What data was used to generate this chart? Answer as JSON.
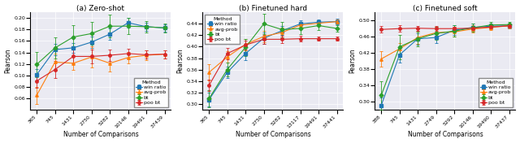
{
  "x_labels_a": [
    365,
    745,
    1431,
    2750,
    5282,
    10146,
    19491,
    37439
  ],
  "x_labels_b": [
    365,
    745,
    1431,
    2750,
    5282,
    13117,
    19491,
    37441
  ],
  "x_labels_c": [
    388,
    745,
    1431,
    2749,
    5292,
    10146,
    19490,
    37437
  ],
  "subplot_titles": [
    "(a) Zero-shot",
    "(b) Finetuned hard",
    "(c) Finetuned soft"
  ],
  "ylabel": "Pearson",
  "xlabel": "Number of Comparisons",
  "methods": [
    "win ratio",
    "avg-prob",
    "bt",
    "poo bt"
  ],
  "colors": [
    "#1f77b4",
    "#ff7f0e",
    "#2ca02c",
    "#d62728"
  ],
  "markers": [
    "s",
    "^",
    "D",
    "o"
  ],
  "a_win_ratio": [
    0.101,
    0.145,
    0.148,
    0.158,
    0.172,
    0.192,
    0.185,
    0.183
  ],
  "a_win_ratio_e": [
    0.01,
    0.01,
    0.008,
    0.01,
    0.01,
    0.008,
    0.007,
    0.006
  ],
  "a_avg_prob": [
    0.065,
    0.123,
    0.121,
    0.132,
    0.121,
    0.131,
    0.135,
    0.137
  ],
  "a_avg_prob_e": [
    0.015,
    0.015,
    0.012,
    0.018,
    0.015,
    0.01,
    0.008,
    0.007
  ],
  "a_bt": [
    0.119,
    0.148,
    0.167,
    0.173,
    0.186,
    0.186,
    0.185,
    0.183
  ],
  "a_bt_e": [
    0.022,
    0.018,
    0.02,
    0.02,
    0.02,
    0.014,
    0.01,
    0.008
  ],
  "a_poo_bt": [
    0.09,
    0.11,
    0.133,
    0.133,
    0.135,
    0.138,
    0.136,
    0.137
  ],
  "a_poo_bt_e": [
    0.012,
    0.015,
    0.012,
    0.012,
    0.01,
    0.009,
    0.007,
    0.007
  ],
  "b_win_ratio": [
    0.307,
    0.355,
    0.388,
    0.415,
    0.428,
    0.44,
    0.443,
    0.444
  ],
  "b_win_ratio_e": [
    0.012,
    0.01,
    0.012,
    0.01,
    0.008,
    0.006,
    0.005,
    0.005
  ],
  "b_avg_prob": [
    0.355,
    0.382,
    0.404,
    0.418,
    0.425,
    0.438,
    0.441,
    0.444
  ],
  "b_avg_prob_e": [
    0.014,
    0.01,
    0.01,
    0.01,
    0.008,
    0.006,
    0.005,
    0.004
  ],
  "b_bt": [
    0.309,
    0.36,
    0.399,
    0.44,
    0.43,
    0.432,
    0.437,
    0.432
  ],
  "b_bt_e": [
    0.015,
    0.012,
    0.015,
    0.018,
    0.014,
    0.01,
    0.008,
    0.006
  ],
  "b_poo_bt": [
    0.332,
    0.388,
    0.403,
    0.413,
    0.413,
    0.414,
    0.414,
    0.414
  ],
  "b_poo_bt_e": [
    0.01,
    0.01,
    0.008,
    0.008,
    0.006,
    0.005,
    0.004,
    0.004
  ],
  "c_win_ratio": [
    0.29,
    0.415,
    0.455,
    0.458,
    0.476,
    0.483,
    0.486,
    0.487
  ],
  "c_win_ratio_e": [
    0.02,
    0.018,
    0.014,
    0.014,
    0.012,
    0.009,
    0.007,
    0.006
  ],
  "c_avg_prob": [
    0.405,
    0.43,
    0.458,
    0.47,
    0.472,
    0.479,
    0.483,
    0.487
  ],
  "c_avg_prob_e": [
    0.02,
    0.015,
    0.015,
    0.014,
    0.012,
    0.009,
    0.007,
    0.006
  ],
  "c_bt": [
    0.315,
    0.435,
    0.455,
    0.468,
    0.474,
    0.482,
    0.489,
    0.49
  ],
  "c_bt_e": [
    0.035,
    0.03,
    0.018,
    0.016,
    0.014,
    0.01,
    0.008,
    0.006
  ],
  "c_poo_bt": [
    0.478,
    0.48,
    0.481,
    0.48,
    0.48,
    0.481,
    0.484,
    0.487
  ],
  "c_poo_bt_e": [
    0.008,
    0.008,
    0.006,
    0.006,
    0.005,
    0.005,
    0.004,
    0.004
  ],
  "a_ylim": [
    0.04,
    0.21
  ],
  "b_ylim": [
    0.29,
    0.46
  ],
  "c_ylim": [
    0.28,
    0.52
  ],
  "a_yticks": [
    0.06,
    0.08,
    0.1,
    0.12,
    0.14,
    0.16,
    0.18,
    0.2
  ],
  "b_yticks": [
    0.3,
    0.32,
    0.34,
    0.36,
    0.38,
    0.4,
    0.42,
    0.44
  ],
  "c_yticks": [
    0.3,
    0.34,
    0.38,
    0.42,
    0.46,
    0.5
  ],
  "background": "#eaeaf2",
  "grid_color": "#ffffff",
  "legend_fontsize": 4.5,
  "tick_fontsize": 4.5,
  "label_fontsize": 5.5,
  "title_fontsize": 6.5,
  "linewidth": 0.8,
  "markersize": 2.5,
  "capsize": 1.5,
  "elinewidth": 0.6,
  "capthick": 0.6
}
